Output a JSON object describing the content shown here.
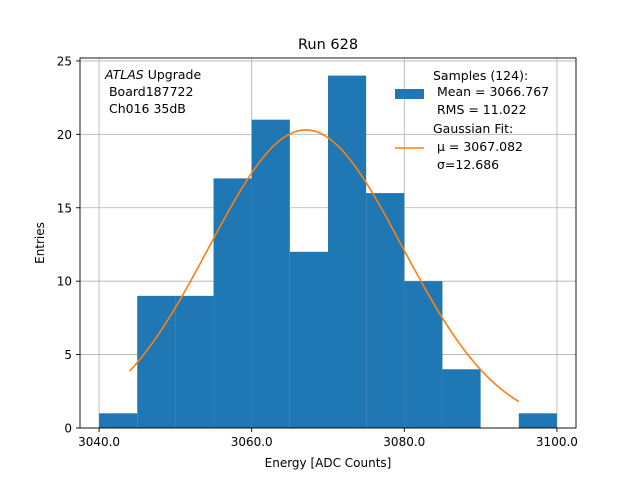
{
  "chart_data": {
    "type": "bar",
    "title": "Run 628",
    "xlabel": "Energy [ADC Counts]",
    "ylabel": "Entries",
    "xlim": [
      3037.5,
      3102.5
    ],
    "ylim": [
      0,
      25.2
    ],
    "grid": true,
    "x_ticks": [
      {
        "value": 3040,
        "label": "3040.0"
      },
      {
        "value": 3060,
        "label": "3060.0"
      },
      {
        "value": 3080,
        "label": "3080.0"
      },
      {
        "value": 3100,
        "label": "3100.0"
      }
    ],
    "y_ticks": [
      {
        "value": 0,
        "label": "0"
      },
      {
        "value": 5,
        "label": "5"
      },
      {
        "value": 10,
        "label": "10"
      },
      {
        "value": 15,
        "label": "15"
      },
      {
        "value": 20,
        "label": "20"
      },
      {
        "value": 25,
        "label": "25"
      }
    ],
    "histogram": {
      "name": "Samples (124):",
      "color": "#1f77b4",
      "bin_edges": [
        3040,
        3045,
        3050,
        3055,
        3060,
        3065,
        3070,
        3075,
        3080,
        3085,
        3090,
        3095,
        3100
      ],
      "counts": [
        1,
        9,
        9,
        17,
        21,
        12,
        24,
        16,
        10,
        4,
        0,
        1
      ]
    },
    "fit": {
      "name": "Gaussian Fit:",
      "color": "#ff7f0e",
      "mu": 3067.082,
      "sigma": 12.686,
      "peak": 20.3,
      "x_range": [
        3044,
        3095
      ]
    },
    "legend": {
      "position": "top-right",
      "entries": [
        {
          "kind": "bar",
          "lines": [
            "Samples (124):",
            " Mean = 3066.767",
            " RMS = 11.022"
          ]
        },
        {
          "kind": "line",
          "lines": [
            "Gaussian Fit:",
            " μ = 3067.082",
            " σ=12.686"
          ]
        }
      ]
    },
    "annotation": {
      "italic": "ATLAS",
      "rest": " Upgrade",
      "line2": " Board187722",
      "line3": " Ch016 35dB"
    }
  }
}
